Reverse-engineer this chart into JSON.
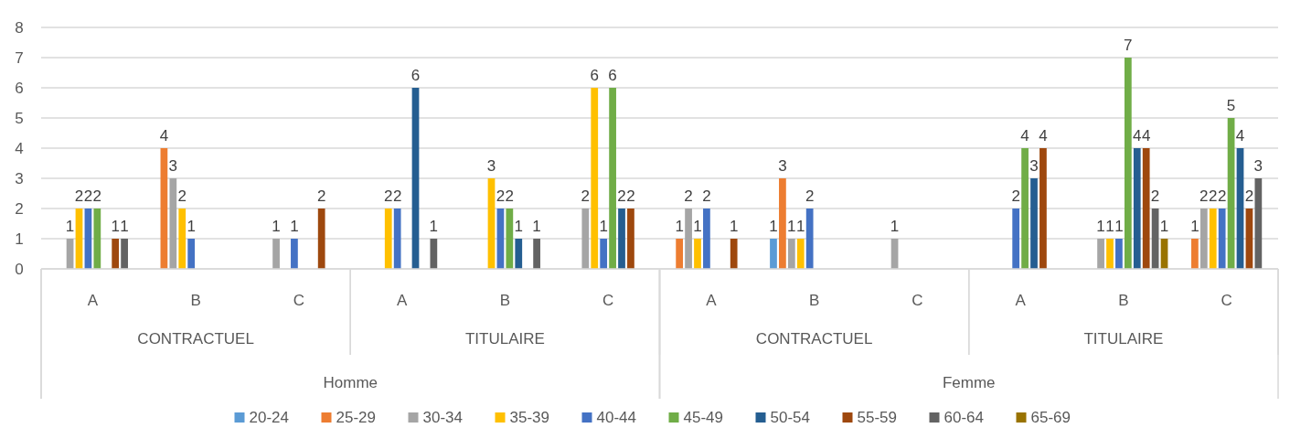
{
  "chart_data": {
    "type": "bar",
    "categories": [
      "A",
      "B",
      "C",
      "A",
      "B",
      "C",
      "A",
      "B",
      "C",
      "A",
      "B",
      "C"
    ],
    "annotations": [
      "CONTRACTUEL",
      "TITULAIRE",
      "CONTRACTUEL",
      "TITULAIRE",
      "Homme",
      "Femme"
    ],
    "series": [
      {
        "name": "20-24",
        "color": "#5b9bd5",
        "values": [
          null,
          null,
          null,
          null,
          null,
          null,
          null,
          1,
          null,
          null,
          null,
          null
        ]
      },
      {
        "name": "25-29",
        "color": "#ed7d31",
        "values": [
          null,
          4,
          null,
          null,
          null,
          null,
          1,
          3,
          null,
          null,
          null,
          1
        ]
      },
      {
        "name": "30-34",
        "color": "#a5a5a5",
        "values": [
          1,
          3,
          1,
          null,
          null,
          2,
          2,
          1,
          1,
          null,
          1,
          2
        ]
      },
      {
        "name": "35-39",
        "color": "#ffc000",
        "values": [
          2,
          2,
          null,
          2,
          3,
          6,
          1,
          1,
          null,
          null,
          1,
          2
        ]
      },
      {
        "name": "40-44",
        "color": "#4472c4",
        "values": [
          2,
          1,
          1,
          2,
          2,
          1,
          2,
          2,
          null,
          2,
          1,
          2
        ]
      },
      {
        "name": "45-49",
        "color": "#70ad47",
        "values": [
          2,
          null,
          null,
          null,
          2,
          6,
          null,
          null,
          null,
          4,
          7,
          5
        ]
      },
      {
        "name": "50-54",
        "color": "#255e91",
        "values": [
          null,
          null,
          null,
          6,
          1,
          2,
          null,
          null,
          null,
          3,
          4,
          4
        ]
      },
      {
        "name": "55-59",
        "color": "#9e480e",
        "values": [
          1,
          null,
          2,
          null,
          null,
          2,
          1,
          null,
          null,
          4,
          4,
          2
        ]
      },
      {
        "name": "60-64",
        "color": "#636363",
        "values": [
          1,
          null,
          null,
          1,
          1,
          null,
          null,
          null,
          null,
          null,
          2,
          3
        ]
      },
      {
        "name": "65-69",
        "color": "#997300",
        "values": [
          null,
          null,
          null,
          null,
          null,
          null,
          null,
          null,
          null,
          null,
          1,
          null
        ]
      }
    ],
    "ylim": [
      0,
      8
    ],
    "yticks": [
      0,
      1,
      2,
      3,
      4,
      5,
      6,
      7,
      8
    ],
    "grid": "y",
    "legend": "bottom",
    "data_labels": true
  }
}
